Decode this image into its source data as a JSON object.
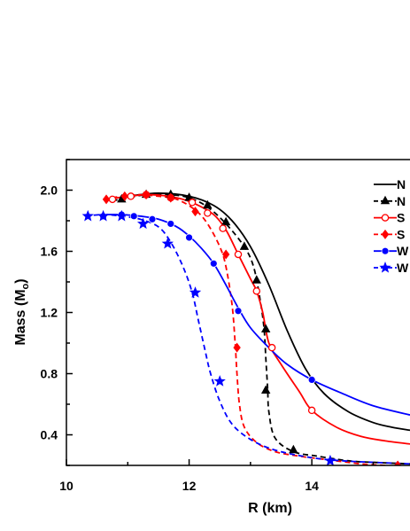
{
  "chart_data": {
    "type": "line",
    "xlabel": "R (km)",
    "ylabel": "Mass (M",
    "ylabel_sub": "o",
    "ylabel_close": ")",
    "xlim": [
      10,
      15.6
    ],
    "ylim": [
      0.2,
      2.2
    ],
    "x_ticks": [
      10,
      12,
      14
    ],
    "y_ticks": [
      0.4,
      0.8,
      1.2,
      1.6,
      2.0
    ],
    "x_tick_labels": [
      "10",
      "12",
      "14"
    ],
    "y_tick_labels": [
      "0.4",
      "0.8",
      "1.2",
      "1.6",
      "2.0"
    ],
    "legend_position": "top-right",
    "legend_labels": [
      "N",
      "N",
      "S",
      "S",
      "W",
      "W"
    ],
    "series": [
      {
        "color": "#000000",
        "dash": "solid",
        "marker": "none",
        "x": [
          11.0,
          11.5,
          12.0,
          12.4,
          12.7,
          13.0,
          13.3,
          13.6,
          13.9,
          14.2,
          14.6,
          15.0,
          15.3,
          15.6
        ],
        "y": [
          1.96,
          1.98,
          1.96,
          1.9,
          1.8,
          1.63,
          1.38,
          1.08,
          0.83,
          0.67,
          0.55,
          0.48,
          0.45,
          0.43
        ]
      },
      {
        "color": "#000000",
        "dash": "dashed",
        "marker": "triangle",
        "x": [
          10.75,
          11.0,
          11.3,
          11.7,
          12.0,
          12.3,
          12.6,
          12.9,
          13.05,
          13.15,
          13.22,
          13.25,
          13.28,
          13.3,
          13.4,
          13.7,
          14.1,
          14.6,
          15.0,
          15.6
        ],
        "y": [
          1.93,
          1.95,
          1.97,
          1.97,
          1.95,
          1.89,
          1.78,
          1.63,
          1.5,
          1.3,
          1.1,
          0.9,
          0.7,
          0.55,
          0.38,
          0.29,
          0.26,
          0.23,
          0.22,
          0.21
        ],
        "marker_x": [
          10.9,
          11.3,
          11.7,
          12.0,
          12.3,
          12.6,
          12.9,
          13.1,
          13.25,
          13.25,
          13.7
        ],
        "marker_y": [
          1.94,
          1.97,
          1.97,
          1.95,
          1.9,
          1.79,
          1.63,
          1.41,
          1.09,
          0.69,
          0.3
        ]
      },
      {
        "color": "#ff0000",
        "dash": "solid",
        "marker": "circle-open",
        "x": [
          10.7,
          11.0,
          11.4,
          11.8,
          12.1,
          12.4,
          12.6,
          12.8,
          13.0,
          13.1,
          13.2,
          13.3,
          13.5,
          13.8,
          14.0,
          14.4,
          14.8,
          15.2,
          15.6
        ],
        "y": [
          1.94,
          1.96,
          1.97,
          1.95,
          1.91,
          1.84,
          1.74,
          1.58,
          1.42,
          1.34,
          1.2,
          1.0,
          0.86,
          0.68,
          0.56,
          0.45,
          0.39,
          0.36,
          0.34
        ],
        "marker_x": [
          10.75,
          11.05,
          11.3,
          11.7,
          12.05,
          12.3,
          12.55,
          12.8,
          13.1,
          13.35,
          14.0
        ],
        "marker_y": [
          1.94,
          1.96,
          1.97,
          1.95,
          1.92,
          1.85,
          1.75,
          1.58,
          1.34,
          0.97,
          0.56
        ]
      },
      {
        "color": "#ff0000",
        "dash": "dashed",
        "marker": "diamond",
        "x": [
          10.6,
          10.9,
          11.2,
          11.5,
          11.8,
          12.1,
          12.3,
          12.5,
          12.6,
          12.7,
          12.75,
          12.78,
          12.82,
          12.9,
          13.1,
          13.4,
          13.8,
          14.2,
          14.8,
          15.2,
          15.6
        ],
        "y": [
          1.94,
          1.96,
          1.97,
          1.96,
          1.94,
          1.87,
          1.78,
          1.63,
          1.5,
          1.25,
          1.0,
          0.8,
          0.6,
          0.45,
          0.35,
          0.29,
          0.26,
          0.24,
          0.21,
          0.2,
          0.19
        ],
        "marker_x": [
          10.65,
          10.95,
          11.3,
          11.7,
          12.1,
          12.6,
          12.78,
          15.4
        ],
        "marker_y": [
          1.94,
          1.96,
          1.97,
          1.95,
          1.86,
          1.58,
          0.97,
          0.2
        ]
      },
      {
        "color": "#0000ff",
        "dash": "solid",
        "marker": "circle-filled",
        "x": [
          10.6,
          10.9,
          11.2,
          11.5,
          11.8,
          12.0,
          12.2,
          12.4,
          12.6,
          12.8,
          13.0,
          13.3,
          13.6,
          14.0,
          14.5,
          15.0,
          15.6
        ],
        "y": [
          1.84,
          1.84,
          1.83,
          1.81,
          1.76,
          1.7,
          1.62,
          1.52,
          1.38,
          1.23,
          1.1,
          0.97,
          0.86,
          0.76,
          0.67,
          0.59,
          0.53
        ],
        "marker_x": [
          10.6,
          10.9,
          11.1,
          11.4,
          11.7,
          12.0,
          12.4,
          12.8,
          14.0
        ],
        "marker_y": [
          1.83,
          1.84,
          1.83,
          1.81,
          1.78,
          1.69,
          1.52,
          1.21,
          0.76
        ]
      },
      {
        "color": "#0000ff",
        "dash": "dashed",
        "marker": "star",
        "x": [
          10.3,
          10.6,
          10.9,
          11.2,
          11.5,
          11.7,
          11.9,
          12.05,
          12.15,
          12.25,
          12.35,
          12.5,
          12.7,
          13.0,
          13.4,
          14.0,
          14.5,
          15.0,
          15.6
        ],
        "y": [
          1.83,
          1.84,
          1.83,
          1.81,
          1.76,
          1.66,
          1.5,
          1.33,
          1.15,
          0.97,
          0.8,
          0.62,
          0.47,
          0.37,
          0.3,
          0.25,
          0.23,
          0.22,
          0.21
        ],
        "marker_x": [
          10.35,
          10.6,
          10.9,
          11.25,
          11.65,
          12.1,
          12.5,
          14.3
        ],
        "marker_y": [
          1.83,
          1.83,
          1.83,
          1.78,
          1.65,
          1.33,
          0.75,
          0.23
        ]
      }
    ]
  }
}
